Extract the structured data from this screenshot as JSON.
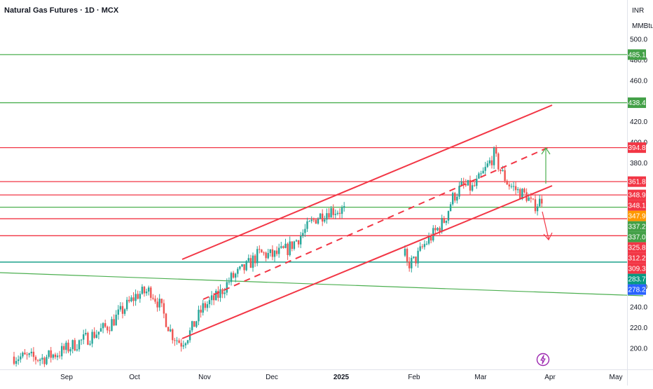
{
  "header": {
    "title": "Natural Gas Futures · 1D · MCX",
    "currency": "INR",
    "unit": "MMBtu"
  },
  "colors": {
    "up": "#26a69a",
    "down": "#ef5350",
    "green_line": "#4caf50",
    "red_line": "#f23645",
    "teal_line": "#089981",
    "green_label": "#43a047",
    "red_label": "#f23645",
    "orange_label": "#ff9800",
    "teal_label": "#089981",
    "blue_label": "#2962ff",
    "gray_text": "#131722"
  },
  "icons": {
    "flash": "lightning-bolt-icon"
  },
  "chart_data": {
    "type": "candlestick",
    "title": "Natural Gas Futures · 1D · MCX",
    "y_axis": {
      "ticks": [
        200.0,
        220.0,
        240.0,
        260.0,
        280.0,
        300.0,
        320.0,
        340.0,
        360.0,
        380.0,
        400.0,
        420.0,
        440.0,
        460.0,
        480.0,
        500.0
      ],
      "visible_tick_labels": [
        "500.0",
        "480.0",
        "460.0",
        "420.0",
        "400.0",
        "380.0",
        "260.0",
        "240.0",
        "220.0",
        "200.0"
      ],
      "range": [
        180,
        515
      ]
    },
    "x_axis": {
      "labels": [
        "Sep",
        "Oct",
        "Nov",
        "Dec",
        "2025",
        "Feb",
        "Mar",
        "Apr",
        "May"
      ]
    },
    "horizontal_levels": [
      {
        "value": 485.1,
        "color": "green"
      },
      {
        "value": 438.4,
        "color": "green"
      },
      {
        "value": 394.8,
        "color": "red"
      },
      {
        "value": 361.8,
        "color": "red"
      },
      {
        "value": 348.9,
        "color": "red"
      },
      {
        "value": 337.0,
        "color": "green"
      },
      {
        "value": 325.8,
        "color": "red"
      },
      {
        "value": 309.3,
        "color": "red"
      },
      {
        "value": 283.7,
        "color": "teal"
      }
    ],
    "price_labels": [
      {
        "value": 485.1,
        "label": "485.1",
        "color": "green"
      },
      {
        "value": 438.4,
        "label": "438.4",
        "color": "green"
      },
      {
        "value": 394.8,
        "label": "394.8",
        "color": "red"
      },
      {
        "value": 361.8,
        "label": "361.8",
        "color": "red"
      },
      {
        "value": 348.9,
        "label": "348.9",
        "color": "red"
      },
      {
        "value": 348.1,
        "label": "348.1",
        "color": "red"
      },
      {
        "value": 347.9,
        "label": "347.9",
        "color": "orange"
      },
      {
        "value": 337.2,
        "label": "337.2",
        "color": "green"
      },
      {
        "value": 337.0,
        "label": "337.0",
        "color": "green"
      },
      {
        "value": 325.8,
        "label": "325.8",
        "color": "red"
      },
      {
        "value": 312.2,
        "label": "312.2",
        "color": "red"
      },
      {
        "value": 309.3,
        "label": "309.3",
        "color": "red"
      },
      {
        "value": 283.7,
        "label": "283.7",
        "color": "teal"
      },
      {
        "value": 278.2,
        "label": "278.2",
        "color": "blue"
      }
    ],
    "channel": {
      "upper": [
        [
          0.258,
          0.0
        ],
        [
          0.79,
          1.0
        ]
      ],
      "lower": [
        [
          0.258,
          0.0
        ],
        [
          0.79,
          1.0
        ]
      ]
    }
  }
}
